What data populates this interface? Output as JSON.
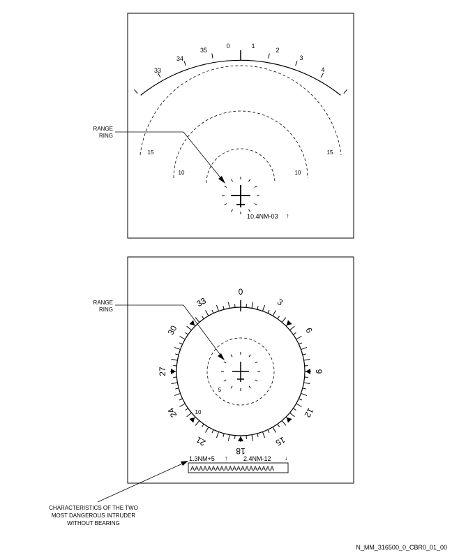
{
  "top_panel": {
    "heading_labels": [
      "33",
      "34",
      "35",
      "0",
      "1",
      "2",
      "3",
      "4"
    ],
    "range_ring_labels": [
      "15",
      "15",
      "10",
      "10"
    ],
    "callout": [
      "RANGE",
      "RING"
    ],
    "intruder_readout": "10.4NM-03",
    "intruder_arrow": "↑"
  },
  "bottom_panel": {
    "compass_labels": [
      "0",
      "3",
      "6",
      "9",
      "12",
      "15",
      "18",
      "21",
      "24",
      "27",
      "30",
      "33"
    ],
    "range_ring_labels": [
      "5",
      "10"
    ],
    "callout": [
      "RANGE",
      "RING"
    ],
    "intruder_1": "1.3NM+5",
    "intruder_1_arrow": "↑",
    "intruder_2": "2.4NM-12",
    "intruder_2_arrow": "↓",
    "message_box": "AAAAAAAAAAAAAAAAAAAA",
    "annotation": [
      "CHARACTERISTICS OF THE TWO",
      "MOST DANGEROUS INTRUDER",
      "WITHOUT BEARING"
    ]
  },
  "footer": {
    "figure_id": "N_MM_316500_0_CBR0_01_00"
  }
}
